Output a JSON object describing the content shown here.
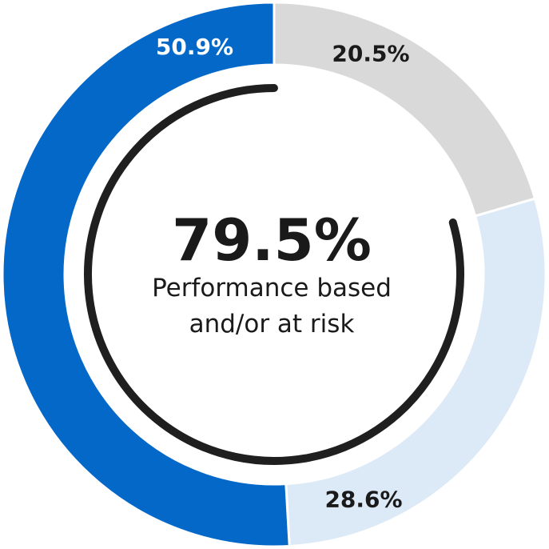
{
  "chart_data": {
    "type": "pie",
    "categories": [
      "",
      "",
      ""
    ],
    "values": [
      20.5,
      28.6,
      50.9
    ],
    "labels": [
      "20.5%",
      "28.6%",
      "50.9%"
    ],
    "colors": [
      "#d9d9d9",
      "#dce9f6",
      "#0468c9"
    ],
    "label_colors": [
      "#1a1a1a",
      "#1a1a1a",
      "#ffffff"
    ],
    "start_angle_deg": 0,
    "direction": "clockwise",
    "center": {
      "value": "79.5%",
      "caption_lines": [
        "Performance based",
        "and/or at risk"
      ],
      "arc_value": 79.5,
      "arc_color": "#1f1f1f"
    }
  }
}
